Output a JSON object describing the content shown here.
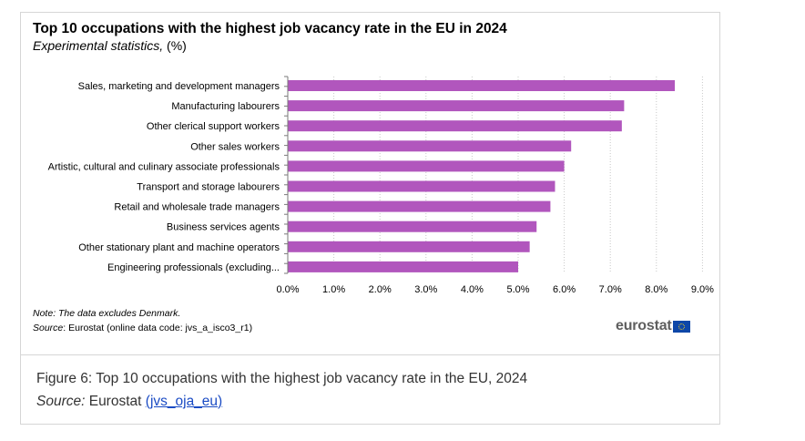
{
  "chart_data": {
    "type": "bar",
    "orientation": "horizontal",
    "title": "Top 10 occupations with the highest job vacancy rate in the EU in 2024",
    "subtitle_italic": "Experimental statistics,",
    "subtitle_rest": " (%)",
    "categories": [
      "Sales, marketing and development managers",
      "Manufacturing labourers",
      "Other clerical support workers",
      "Other sales workers",
      "Artistic, cultural and culinary associate professionals",
      "Transport and storage labourers",
      "Retail and wholesale trade managers",
      "Business services agents",
      "Other stationary plant and machine operators",
      "Engineering professionals (excluding..."
    ],
    "values": [
      8.4,
      7.3,
      7.25,
      6.15,
      6.0,
      5.8,
      5.7,
      5.4,
      5.25,
      5.0
    ],
    "xlim": [
      0,
      9
    ],
    "xticks": [
      "0.0%",
      "1.0%",
      "2.0%",
      "3.0%",
      "4.0%",
      "5.0%",
      "6.0%",
      "7.0%",
      "8.0%",
      "9.0%"
    ],
    "bar_color": "#b156bd",
    "grid": true,
    "xlabel": "",
    "ylabel": ""
  },
  "note": {
    "label": "Note",
    "text": ": The data excludes Denmark."
  },
  "source": {
    "label": "Source",
    "text": ": Eurostat (online data code: jvs_a_isco3_r1)"
  },
  "logo": {
    "text": "eurostat"
  },
  "caption": {
    "figure_text": "Figure 6: Top 10 occupations with the highest job vacancy rate in the EU, 2024",
    "source_label": "Source:",
    "source_prefix": " Eurostat ",
    "link_open": "(",
    "link_text": "jvs_oja_eu",
    "link_close": ")"
  }
}
